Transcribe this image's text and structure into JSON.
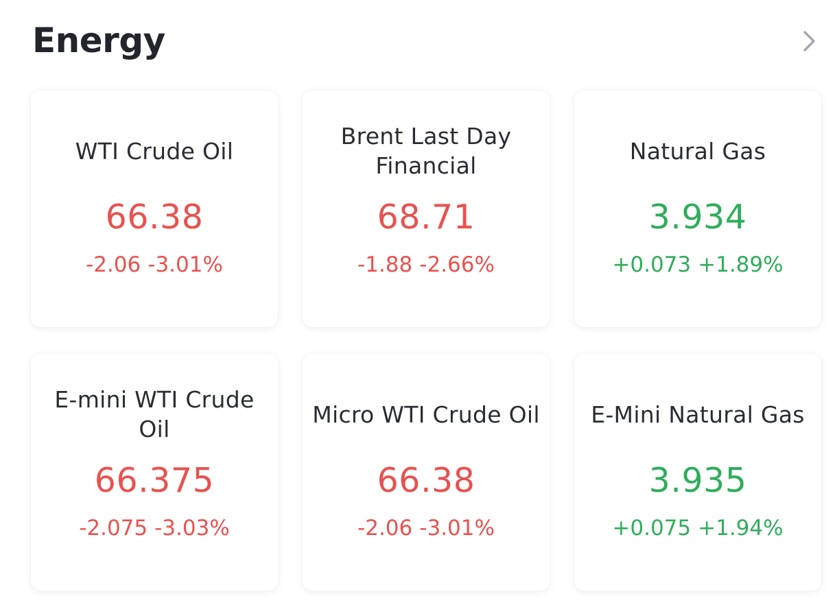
{
  "header": {
    "title": "Energy",
    "more_icon": "chevron-right-icon"
  },
  "colors": {
    "down": "#e8524f",
    "up": "#2fad5b"
  },
  "cards": [
    {
      "name": "WTI Crude Oil",
      "price": "66.38",
      "change": "-2.06",
      "change_pct": "-3.01%",
      "direction": "down"
    },
    {
      "name": "Brent Last Day Financial",
      "price": "68.71",
      "change": "-1.88",
      "change_pct": "-2.66%",
      "direction": "down"
    },
    {
      "name": "Natural Gas",
      "price": "3.934",
      "change": "+0.073",
      "change_pct": "+1.89%",
      "direction": "up"
    },
    {
      "name": "E-mini WTI Crude Oil",
      "price": "66.375",
      "change": "-2.075",
      "change_pct": "-3.03%",
      "direction": "down"
    },
    {
      "name": "Micro WTI Crude Oil",
      "price": "66.38",
      "change": "-2.06",
      "change_pct": "-3.01%",
      "direction": "down"
    },
    {
      "name": "E-Mini Natural Gas",
      "price": "3.935",
      "change": "+0.075",
      "change_pct": "+1.94%",
      "direction": "up"
    }
  ]
}
